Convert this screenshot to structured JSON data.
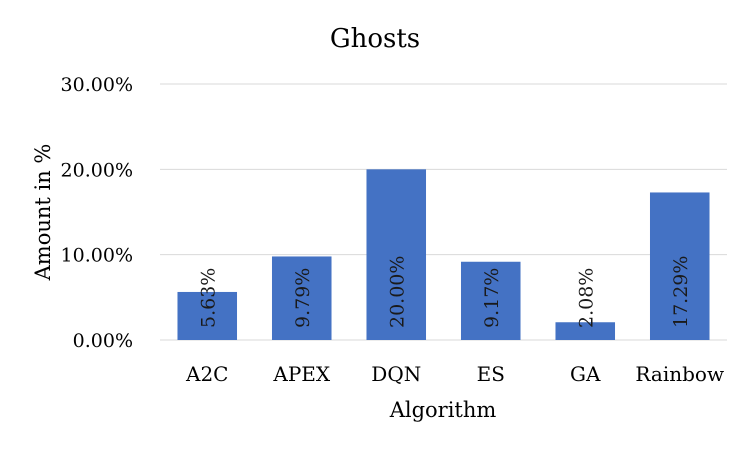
{
  "chart_data": {
    "type": "bar",
    "title": "Ghosts",
    "xlabel": "Algorithm",
    "ylabel": "Amount in %",
    "categories": [
      "A2C",
      "APEX",
      "DQN",
      "ES",
      "GA",
      "Rainbow"
    ],
    "values": [
      5.63,
      9.79,
      20.0,
      9.17,
      2.08,
      17.29
    ],
    "data_labels": [
      "5.63%",
      "9.79%",
      "20.00%",
      "9.17%",
      "2.08%",
      "17.29%"
    ],
    "ylim": [
      0,
      30
    ],
    "yticks": [
      0,
      10,
      20,
      30
    ],
    "ytick_labels": [
      "0.00%",
      "10.00%",
      "20.00%",
      "30.00%"
    ],
    "grid": true,
    "legend": "none",
    "bar_color": "#4472C4"
  }
}
